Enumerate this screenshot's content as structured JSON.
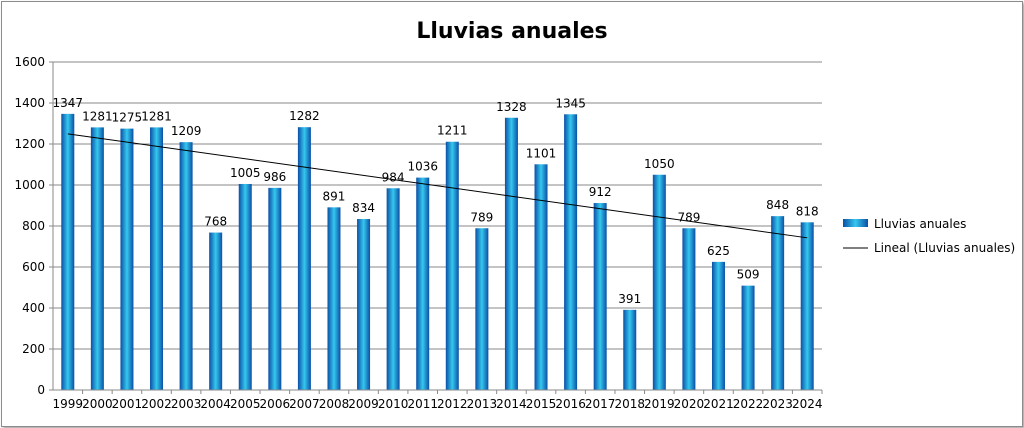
{
  "chart_data": {
    "type": "bar",
    "title": "Lluvias anuales",
    "xlabel": "",
    "ylabel": "",
    "ylim": [
      0,
      1600
    ],
    "yticks": [
      0,
      200,
      400,
      600,
      800,
      1000,
      1200,
      1400,
      1600
    ],
    "grid": true,
    "legend_position": "right",
    "categories": [
      "1999",
      "2000",
      "2001",
      "2002",
      "2003",
      "2004",
      "2005",
      "2006",
      "2007",
      "2008",
      "2009",
      "2010",
      "2011",
      "2012",
      "2013",
      "2014",
      "2015",
      "2016",
      "2017",
      "2018",
      "2019",
      "2020",
      "2021",
      "2022",
      "2023",
      "2024"
    ],
    "series": [
      {
        "name": "Lluvias anuales",
        "type": "bar",
        "color": "#1a8fe0",
        "values": [
          1347,
          1281,
          1275,
          1281,
          1209,
          768,
          1005,
          986,
          1282,
          891,
          834,
          984,
          1036,
          1211,
          789,
          1328,
          1101,
          1345,
          912,
          391,
          1050,
          789,
          625,
          509,
          848,
          818
        ]
      },
      {
        "name": "Lineal (Lluvias anuales)",
        "type": "trendline",
        "color": "#000000"
      }
    ]
  }
}
